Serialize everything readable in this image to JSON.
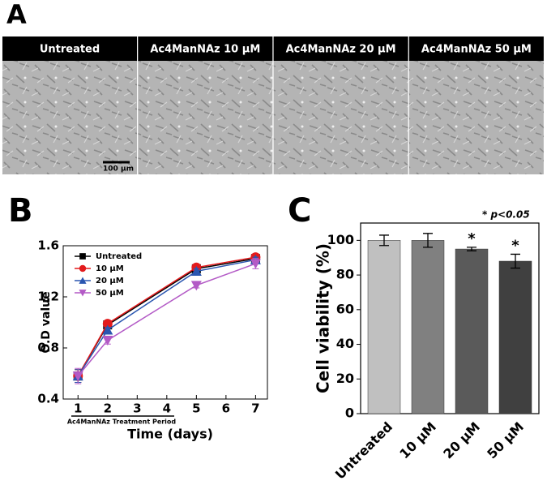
{
  "panel_a": {
    "label": "A",
    "images": [
      "Untreated",
      "Ac4ManNAz 10 μM",
      "Ac4ManNAz 20 μM",
      "Ac4ManNAz 50 μM"
    ],
    "scale_bar": "100 μm"
  },
  "chart_data": [
    {
      "type": "line",
      "panel": "B",
      "x": [
        1,
        2,
        5,
        7
      ],
      "xlim": [
        0.5,
        7.4
      ],
      "xticks": [
        1,
        2,
        3,
        4,
        5,
        6,
        7
      ],
      "ylim": [
        0.4,
        1.6
      ],
      "yticks": [
        0.4,
        0.8,
        1.2,
        1.6
      ],
      "xlabel": "Time (days)",
      "ylabel": "O.D value",
      "annotation": "Ac4ManNAz Treatment Period",
      "legend": "upper left",
      "series": [
        {
          "name": "Untreated",
          "color": "#000000",
          "marker": "square",
          "values": [
            0.58,
            0.98,
            1.42,
            1.5
          ],
          "errors": [
            0.05,
            0.02,
            0.02,
            0.02
          ]
        },
        {
          "name": "10 μM",
          "color": "#e31a1c",
          "marker": "circle",
          "values": [
            0.58,
            0.99,
            1.43,
            1.51
          ],
          "errors": [
            0.05,
            0.02,
            0.02,
            0.02
          ]
        },
        {
          "name": "20 μM",
          "color": "#2a56b0",
          "marker": "triangle-up",
          "values": [
            0.58,
            0.94,
            1.4,
            1.49
          ],
          "errors": [
            0.05,
            0.02,
            0.02,
            0.02
          ]
        },
        {
          "name": "50 μM",
          "color": "#b35ac6",
          "marker": "triangle-down",
          "values": [
            0.58,
            0.86,
            1.29,
            1.46
          ],
          "errors": [
            0.06,
            0.03,
            0.02,
            0.04
          ]
        }
      ]
    },
    {
      "type": "bar",
      "panel": "C",
      "categories": [
        "Untreated",
        "10 μM",
        "20 μM",
        "50 μM"
      ],
      "values": [
        100,
        100,
        95,
        88
      ],
      "errors": [
        3,
        4,
        1,
        4
      ],
      "colors": [
        "#c0c0c0",
        "#808080",
        "#5a5a5a",
        "#404040"
      ],
      "value_annotations": [
        null,
        null,
        "*",
        "*"
      ],
      "note": "* p<0.05",
      "ylim": [
        0,
        110
      ],
      "yticks": [
        0,
        20,
        40,
        60,
        80,
        100
      ],
      "ylabel": "Cell viability (%)"
    }
  ]
}
